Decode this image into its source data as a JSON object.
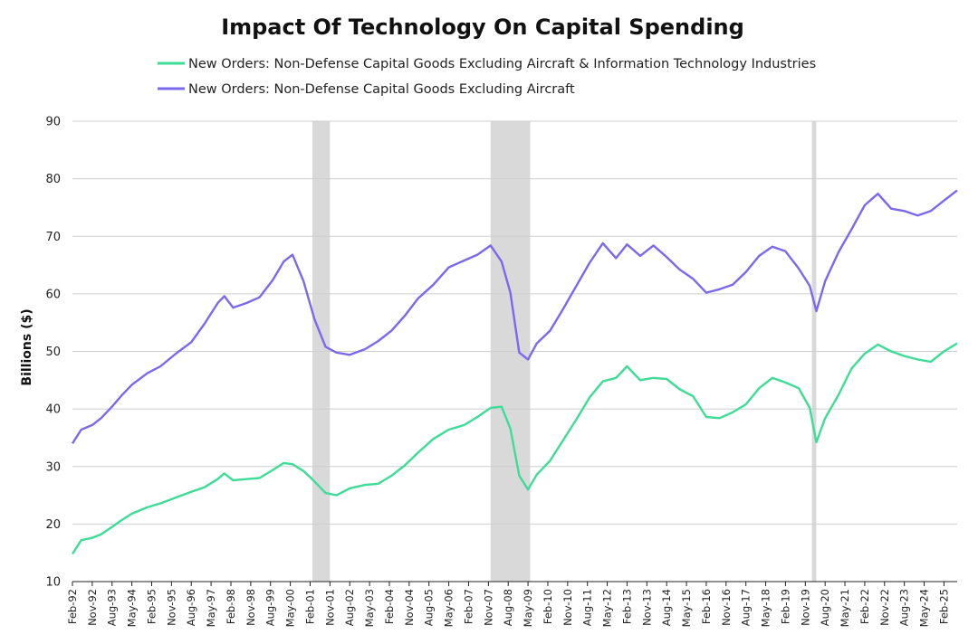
{
  "chart_data": {
    "type": "line",
    "title": "Impact Of Technology On Capital Spending",
    "ylabel": "Billions ($)",
    "xlabel": "",
    "ylim": [
      10,
      90
    ],
    "yticks": [
      10,
      20,
      30,
      40,
      50,
      60,
      70,
      80,
      90
    ],
    "grid": true,
    "legend_position": "top",
    "x_range": [
      "1992-02",
      "2025-08"
    ],
    "x_ticks": [
      "Feb-92",
      "Nov-92",
      "Aug-93",
      "May-94",
      "Feb-95",
      "Nov-95",
      "Aug-96",
      "May-97",
      "Feb-98",
      "Nov-98",
      "Aug-99",
      "May-00",
      "Feb-01",
      "Nov-01",
      "Aug-02",
      "May-03",
      "Feb-04",
      "Nov-04",
      "Aug-05",
      "May-06",
      "Feb-07",
      "Nov-07",
      "Aug-08",
      "May-09",
      "Feb-10",
      "Nov-10",
      "Aug-11",
      "May-12",
      "Feb-13",
      "Nov-13",
      "Aug-14",
      "May-15",
      "Feb-16",
      "Nov-16",
      "Aug-17",
      "May-18",
      "Feb-19",
      "Nov-19",
      "Aug-20",
      "May-21",
      "Feb-22",
      "Nov-22",
      "Aug-23",
      "May-24",
      "Feb-25"
    ],
    "recessions": [
      {
        "start": "2001-03",
        "end": "2001-11"
      },
      {
        "start": "2007-12",
        "end": "2009-06"
      },
      {
        "start": "2020-02",
        "end": "2020-04"
      }
    ],
    "series": [
      {
        "name": "New Orders: Non-Defense Capital Goods Excluding Aircraft & Information Technology Industries",
        "color": "#3ddc97",
        "points": [
          [
            "1992-02",
            14.8
          ],
          [
            "1992-06",
            17.2
          ],
          [
            "1992-11",
            17.6
          ],
          [
            "1993-03",
            18.2
          ],
          [
            "1993-08",
            19.5
          ],
          [
            "1993-12",
            20.6
          ],
          [
            "1994-05",
            21.8
          ],
          [
            "1994-12",
            22.9
          ],
          [
            "1995-06",
            23.6
          ],
          [
            "1996-01",
            24.6
          ],
          [
            "1996-08",
            25.6
          ],
          [
            "1997-02",
            26.4
          ],
          [
            "1997-08",
            27.8
          ],
          [
            "1997-11",
            28.8
          ],
          [
            "1998-03",
            27.6
          ],
          [
            "1998-09",
            27.8
          ],
          [
            "1999-03",
            28.0
          ],
          [
            "1999-09",
            29.4
          ],
          [
            "2000-02",
            30.6
          ],
          [
            "2000-06",
            30.4
          ],
          [
            "2000-11",
            29.2
          ],
          [
            "2001-04",
            27.4
          ],
          [
            "2001-09",
            25.4
          ],
          [
            "2002-02",
            25.0
          ],
          [
            "2002-08",
            26.2
          ],
          [
            "2003-03",
            26.8
          ],
          [
            "2003-09",
            27.0
          ],
          [
            "2004-03",
            28.4
          ],
          [
            "2004-09",
            30.2
          ],
          [
            "2005-03",
            32.4
          ],
          [
            "2005-10",
            34.8
          ],
          [
            "2006-05",
            36.4
          ],
          [
            "2006-12",
            37.2
          ],
          [
            "2007-06",
            38.6
          ],
          [
            "2007-12",
            40.2
          ],
          [
            "2008-05",
            40.4
          ],
          [
            "2008-09",
            36.6
          ],
          [
            "2009-01",
            28.4
          ],
          [
            "2009-05",
            26.0
          ],
          [
            "2009-09",
            28.6
          ],
          [
            "2010-03",
            31.0
          ],
          [
            "2010-09",
            34.6
          ],
          [
            "2011-03",
            38.2
          ],
          [
            "2011-09",
            42.0
          ],
          [
            "2012-03",
            44.8
          ],
          [
            "2012-09",
            45.4
          ],
          [
            "2013-02",
            47.4
          ],
          [
            "2013-08",
            45.0
          ],
          [
            "2014-02",
            45.4
          ],
          [
            "2014-08",
            45.2
          ],
          [
            "2015-02",
            43.4
          ],
          [
            "2015-08",
            42.2
          ],
          [
            "2016-02",
            38.6
          ],
          [
            "2016-08",
            38.4
          ],
          [
            "2017-02",
            39.4
          ],
          [
            "2017-08",
            40.8
          ],
          [
            "2018-02",
            43.6
          ],
          [
            "2018-08",
            45.4
          ],
          [
            "2019-02",
            44.6
          ],
          [
            "2019-08",
            43.6
          ],
          [
            "2020-01",
            40.2
          ],
          [
            "2020-04",
            34.2
          ],
          [
            "2020-08",
            38.4
          ],
          [
            "2021-02",
            42.4
          ],
          [
            "2021-08",
            47.0
          ],
          [
            "2022-02",
            49.6
          ],
          [
            "2022-08",
            51.2
          ],
          [
            "2023-02",
            50.0
          ],
          [
            "2023-08",
            49.2
          ],
          [
            "2024-02",
            48.6
          ],
          [
            "2024-08",
            48.2
          ],
          [
            "2025-02",
            50.0
          ],
          [
            "2025-08",
            51.4
          ]
        ]
      },
      {
        "name": "New Orders: Non-Defense Capital Goods Excluding Aircraft",
        "color": "#7b68ee",
        "points": [
          [
            "1992-02",
            34.0
          ],
          [
            "1992-06",
            36.4
          ],
          [
            "1992-11",
            37.2
          ],
          [
            "1993-03",
            38.4
          ],
          [
            "1993-08",
            40.4
          ],
          [
            "1993-12",
            42.2
          ],
          [
            "1994-05",
            44.2
          ],
          [
            "1994-12",
            46.2
          ],
          [
            "1995-06",
            47.4
          ],
          [
            "1996-01",
            49.6
          ],
          [
            "1996-08",
            51.6
          ],
          [
            "1997-02",
            54.8
          ],
          [
            "1997-08",
            58.4
          ],
          [
            "1997-11",
            59.6
          ],
          [
            "1998-03",
            57.6
          ],
          [
            "1998-09",
            58.4
          ],
          [
            "1999-03",
            59.4
          ],
          [
            "1999-09",
            62.4
          ],
          [
            "2000-02",
            65.6
          ],
          [
            "2000-06",
            66.8
          ],
          [
            "2000-11",
            62.2
          ],
          [
            "2001-04",
            55.6
          ],
          [
            "2001-09",
            50.8
          ],
          [
            "2002-02",
            49.8
          ],
          [
            "2002-08",
            49.4
          ],
          [
            "2003-03",
            50.4
          ],
          [
            "2003-09",
            51.8
          ],
          [
            "2004-03",
            53.6
          ],
          [
            "2004-09",
            56.2
          ],
          [
            "2005-03",
            59.2
          ],
          [
            "2005-10",
            61.6
          ],
          [
            "2006-05",
            64.6
          ],
          [
            "2006-12",
            65.8
          ],
          [
            "2007-06",
            66.8
          ],
          [
            "2007-12",
            68.4
          ],
          [
            "2008-05",
            65.6
          ],
          [
            "2008-09",
            60.2
          ],
          [
            "2009-01",
            49.8
          ],
          [
            "2009-05",
            48.6
          ],
          [
            "2009-09",
            51.4
          ],
          [
            "2010-03",
            53.6
          ],
          [
            "2010-09",
            57.4
          ],
          [
            "2011-03",
            61.4
          ],
          [
            "2011-09",
            65.4
          ],
          [
            "2012-03",
            68.8
          ],
          [
            "2012-09",
            66.2
          ],
          [
            "2013-02",
            68.6
          ],
          [
            "2013-08",
            66.6
          ],
          [
            "2014-02",
            68.4
          ],
          [
            "2014-08",
            66.4
          ],
          [
            "2015-02",
            64.2
          ],
          [
            "2015-08",
            62.6
          ],
          [
            "2016-02",
            60.2
          ],
          [
            "2016-08",
            60.8
          ],
          [
            "2017-02",
            61.6
          ],
          [
            "2017-08",
            63.8
          ],
          [
            "2018-02",
            66.6
          ],
          [
            "2018-08",
            68.2
          ],
          [
            "2019-02",
            67.4
          ],
          [
            "2019-08",
            64.4
          ],
          [
            "2020-01",
            61.4
          ],
          [
            "2020-04",
            57.0
          ],
          [
            "2020-08",
            62.2
          ],
          [
            "2021-02",
            67.2
          ],
          [
            "2021-08",
            71.2
          ],
          [
            "2022-02",
            75.4
          ],
          [
            "2022-08",
            77.4
          ],
          [
            "2023-02",
            74.8
          ],
          [
            "2023-08",
            74.4
          ],
          [
            "2024-02",
            73.6
          ],
          [
            "2024-08",
            74.4
          ],
          [
            "2025-02",
            76.2
          ],
          [
            "2025-08",
            78.0
          ]
        ]
      }
    ]
  }
}
